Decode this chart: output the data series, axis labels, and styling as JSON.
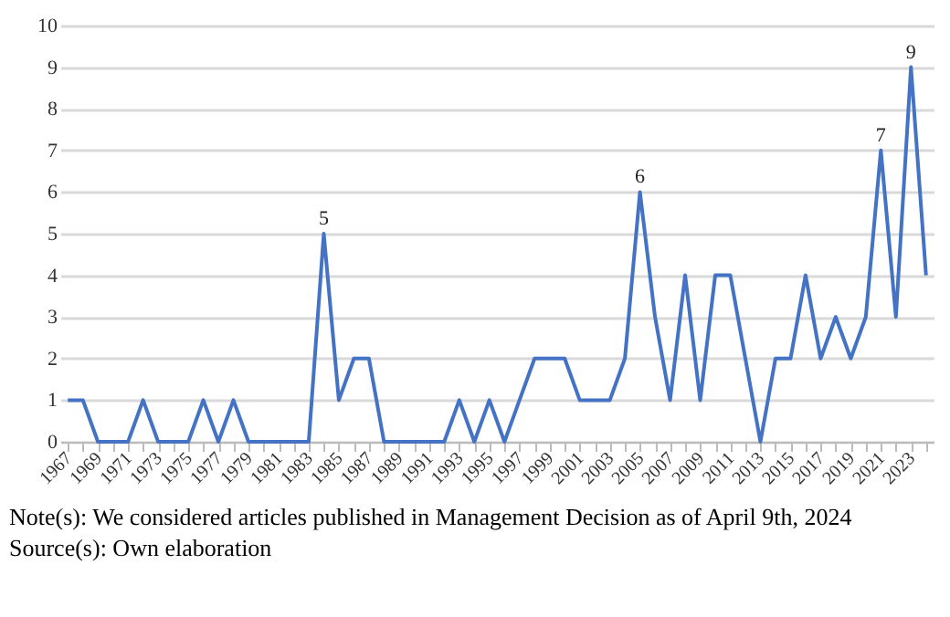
{
  "chart_data": {
    "type": "line",
    "categories": [
      "1967",
      null,
      "1969",
      null,
      "1971",
      null,
      "1973",
      null,
      "1975",
      null,
      "1977",
      null,
      "1979",
      null,
      "1981",
      null,
      "1983",
      null,
      "1985",
      null,
      "1987",
      null,
      "1989",
      null,
      "1991",
      null,
      "1993",
      null,
      "1995",
      null,
      "1997",
      null,
      "1999",
      null,
      "2001",
      null,
      "2003",
      null,
      "2005",
      null,
      "2007",
      null,
      "2009",
      null,
      "2011",
      null,
      "2013",
      null,
      "2015",
      null,
      "2017",
      null,
      "2019",
      null,
      "2021",
      null,
      "2023",
      null
    ],
    "series": [
      {
        "color": "#4472c4",
        "values": [
          1,
          1,
          0,
          0,
          0,
          1,
          0,
          0,
          0,
          1,
          0,
          1,
          0,
          0,
          0,
          0,
          0,
          5,
          1,
          2,
          2,
          0,
          0,
          0,
          0,
          0,
          1,
          0,
          1,
          0,
          1,
          2,
          2,
          2,
          1,
          1,
          1,
          2,
          6,
          3,
          1,
          4,
          1,
          4,
          4,
          2,
          0,
          2,
          2,
          4,
          2,
          3,
          2,
          3,
          7,
          3,
          9,
          4
        ],
        "value_labels": [
          null,
          null,
          null,
          null,
          null,
          null,
          null,
          null,
          null,
          null,
          null,
          null,
          null,
          null,
          null,
          null,
          null,
          "5",
          null,
          null,
          null,
          null,
          null,
          null,
          null,
          null,
          null,
          null,
          null,
          null,
          null,
          null,
          null,
          null,
          null,
          null,
          null,
          null,
          "6",
          null,
          null,
          null,
          null,
          null,
          null,
          null,
          null,
          null,
          null,
          null,
          null,
          null,
          null,
          null,
          "7",
          null,
          "9",
          null
        ]
      }
    ],
    "ylim": [
      0,
      10
    ],
    "yticks": [
      0,
      1,
      2,
      3,
      4,
      5,
      6,
      7,
      8,
      9,
      10
    ],
    "grid": "y",
    "legend": false,
    "marker": "none",
    "line_style": "solid",
    "annotations": [
      "Note(s): We considered articles published in Management Decision as of April 9th, 2024",
      "Source(s): Own elaboration"
    ]
  }
}
